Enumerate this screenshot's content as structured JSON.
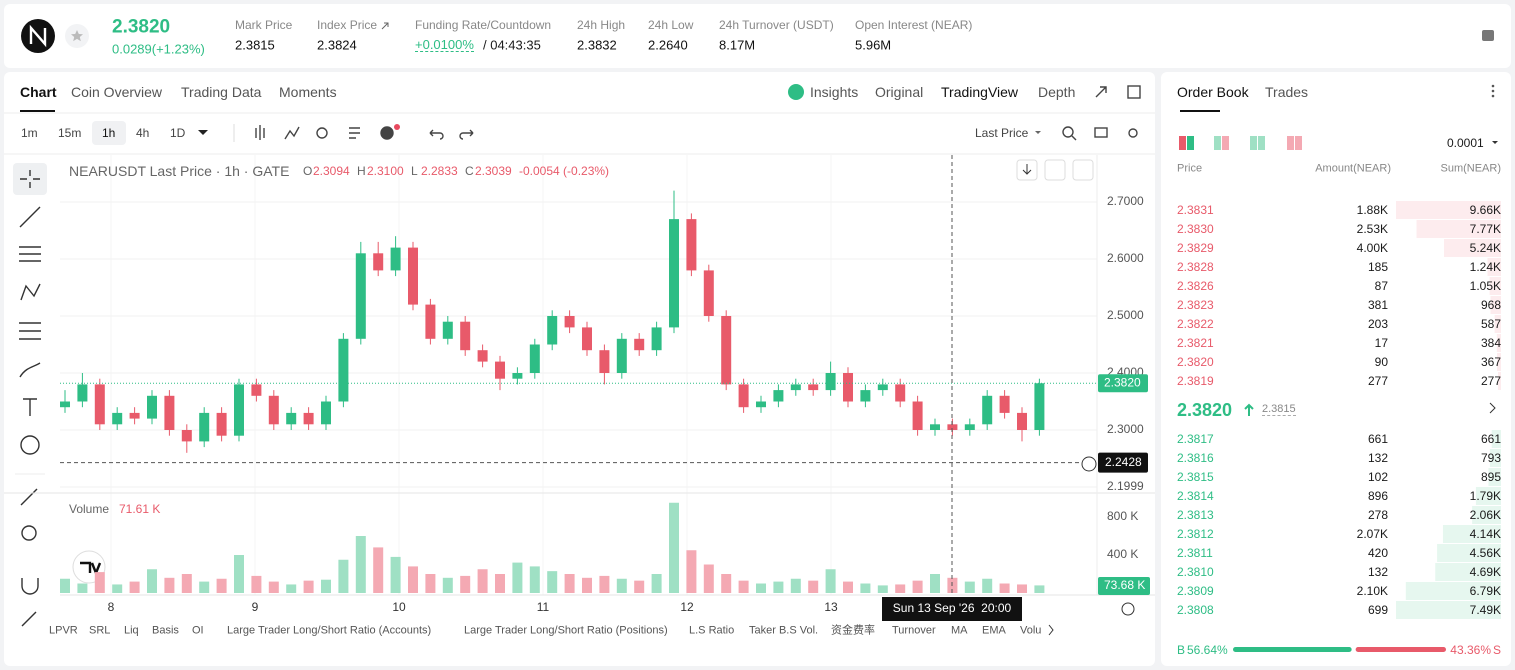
{
  "header": {
    "price": "2.3820",
    "change": "0.0289(+1.23%)",
    "stats": [
      {
        "label": "Mark Price",
        "value": "2.3815"
      },
      {
        "label": "Index Price",
        "value": "2.3824"
      },
      {
        "label": "Funding Rate/Countdown",
        "value": "+0.0100%",
        "extra": "/ 04:43:35"
      },
      {
        "label": "24h High",
        "value": "2.3832"
      },
      {
        "label": "24h Low",
        "value": "2.2640"
      },
      {
        "label": "24h Turnover (USDT)",
        "value": "8.17M"
      },
      {
        "label": "Open Interest (NEAR)",
        "value": "5.96M"
      }
    ]
  },
  "tabs": [
    "Chart",
    "Coin Overview",
    "Trading Data",
    "Moments"
  ],
  "view_tabs": [
    "Insights",
    "Original",
    "TradingView",
    "Depth"
  ],
  "intervals": [
    "1m",
    "15m",
    "1h",
    "4h",
    "1D"
  ],
  "price_type": "Last Price",
  "legend": {
    "symbol": "NEARUSDT Last Price · 1h · GATE",
    "ohlc": [
      {
        "k": "O",
        "v": "2.3094"
      },
      {
        "k": "H",
        "v": "2.3100"
      },
      {
        "k": "L",
        "v": "2.2833"
      },
      {
        "k": "C",
        "v": "2.3039"
      }
    ],
    "change": "-0.0054 (-0.23%)"
  },
  "chart": {
    "candles": {
      "open": [
        2.34,
        2.35,
        2.38,
        2.31,
        2.33,
        2.32,
        2.36,
        2.3,
        2.28,
        2.33,
        2.29,
        2.38,
        2.36,
        2.31,
        2.33,
        2.31,
        2.35,
        2.46,
        2.61,
        2.58,
        2.62,
        2.52,
        2.46,
        2.49,
        2.44,
        2.42,
        2.39,
        2.4,
        2.45,
        2.5,
        2.48,
        2.44,
        2.4,
        2.46,
        2.44,
        2.48,
        2.67,
        2.58,
        2.5,
        2.38,
        2.34,
        2.35,
        2.37,
        2.38,
        2.37,
        2.4,
        2.35,
        2.37,
        2.38,
        2.35,
        2.3,
        2.31,
        2.3,
        2.31,
        2.36,
        2.33,
        2.3
      ],
      "high": [
        2.37,
        2.4,
        2.39,
        2.34,
        2.34,
        2.37,
        2.37,
        2.31,
        2.34,
        2.34,
        2.39,
        2.39,
        2.37,
        2.34,
        2.34,
        2.36,
        2.47,
        2.63,
        2.63,
        2.64,
        2.63,
        2.53,
        2.5,
        2.5,
        2.45,
        2.43,
        2.41,
        2.46,
        2.51,
        2.51,
        2.49,
        2.45,
        2.47,
        2.47,
        2.49,
        2.72,
        2.68,
        2.59,
        2.51,
        2.39,
        2.36,
        2.38,
        2.39,
        2.39,
        2.42,
        2.41,
        2.38,
        2.39,
        2.39,
        2.36,
        2.32,
        2.32,
        2.32,
        2.37,
        2.37,
        2.34,
        2.39
      ],
      "low": [
        2.33,
        2.34,
        2.3,
        2.3,
        2.31,
        2.31,
        2.29,
        2.26,
        2.27,
        2.28,
        2.28,
        2.35,
        2.3,
        2.3,
        2.3,
        2.3,
        2.34,
        2.45,
        2.57,
        2.57,
        2.51,
        2.45,
        2.45,
        2.43,
        2.41,
        2.37,
        2.38,
        2.39,
        2.44,
        2.47,
        2.43,
        2.38,
        2.39,
        2.43,
        2.43,
        2.47,
        2.57,
        2.49,
        2.37,
        2.33,
        2.33,
        2.34,
        2.36,
        2.36,
        2.36,
        2.34,
        2.34,
        2.36,
        2.34,
        2.29,
        2.29,
        2.29,
        2.29,
        2.3,
        2.32,
        2.28,
        2.29
      ],
      "close": [
        2.35,
        2.38,
        2.31,
        2.33,
        2.32,
        2.36,
        2.3,
        2.28,
        2.33,
        2.29,
        2.38,
        2.36,
        2.31,
        2.33,
        2.31,
        2.35,
        2.46,
        2.61,
        2.58,
        2.62,
        2.52,
        2.46,
        2.49,
        2.44,
        2.42,
        2.39,
        2.4,
        2.45,
        2.5,
        2.48,
        2.44,
        2.4,
        2.46,
        2.44,
        2.48,
        2.67,
        2.58,
        2.5,
        2.38,
        2.34,
        2.35,
        2.37,
        2.38,
        2.37,
        2.4,
        2.35,
        2.37,
        2.38,
        2.35,
        2.3,
        2.31,
        2.3,
        2.31,
        2.36,
        2.33,
        2.3,
        2.382
      ]
    },
    "volume": [
      150,
      100,
      220,
      90,
      120,
      250,
      160,
      200,
      120,
      150,
      400,
      180,
      120,
      90,
      130,
      140,
      350,
      600,
      480,
      380,
      280,
      200,
      160,
      180,
      250,
      200,
      320,
      280,
      230,
      200,
      160,
      180,
      150,
      130,
      200,
      950,
      450,
      300,
      200,
      130,
      100,
      120,
      150,
      130,
      250,
      120,
      100,
      80,
      90,
      130,
      200,
      160,
      120,
      150,
      100,
      90,
      80
    ],
    "price_ticks": [
      {
        "value": 2.7,
        "label": "2.7000"
      },
      {
        "value": 2.6,
        "label": "2.6000"
      },
      {
        "value": 2.5,
        "label": "2.5000"
      },
      {
        "value": 2.4,
        "label": "2.4000"
      },
      {
        "value": 2.3,
        "label": "2.3000"
      },
      {
        "value": 2.1999,
        "label": "2.1999"
      }
    ],
    "volume_ticks": [
      {
        "value": 800,
        "label": "800 K"
      },
      {
        "value": 400,
        "label": "400 K"
      }
    ],
    "dates": [
      "8",
      "9",
      "10",
      "11",
      "12",
      "13"
    ],
    "last_price": {
      "value": 2.382,
      "label": "2.3820"
    },
    "crosshair": {
      "value": 2.2428,
      "label": "2.2428",
      "time": "Sun 13 Sep '26  20:00"
    },
    "volume_title": "Volume",
    "volume_value": "71.61 K",
    "volume_tag": {
      "value": 73.68,
      "label": "73.68 K"
    }
  },
  "indicators": [
    "LPVR",
    "SRL",
    "Liq",
    "Basis",
    "OI",
    "Large Trader Long/Short Ratio (Accounts)",
    "Large Trader Long/Short Ratio (Positions)",
    "L.S Ratio",
    "Taker B.S Vol.",
    "资金费率",
    "Turnover",
    "MA",
    "EMA",
    "Volu"
  ],
  "order_book": {
    "tabs": [
      "Order Book",
      "Trades"
    ],
    "precision": "0.0001",
    "columns": [
      "Price",
      "Amount(NEAR)",
      "Sum(NEAR)"
    ],
    "asks": [
      [
        "2.3831",
        "1.88K",
        "9.66K"
      ],
      [
        "2.3830",
        "2.53K",
        "7.77K"
      ],
      [
        "2.3829",
        "4.00K",
        "5.24K"
      ],
      [
        "2.3828",
        "185",
        "1.24K"
      ],
      [
        "2.3826",
        "87",
        "1.05K"
      ],
      [
        "2.3823",
        "381",
        "968"
      ],
      [
        "2.3822",
        "203",
        "587"
      ],
      [
        "2.3821",
        "17",
        "384"
      ],
      [
        "2.3820",
        "90",
        "367"
      ],
      [
        "2.3819",
        "277",
        "277"
      ]
    ],
    "last": "2.3820",
    "mark": "2.3815",
    "bids": [
      [
        "2.3817",
        "661",
        "661"
      ],
      [
        "2.3816",
        "132",
        "793"
      ],
      [
        "2.3815",
        "102",
        "895"
      ],
      [
        "2.3814",
        "896",
        "1.79K"
      ],
      [
        "2.3813",
        "278",
        "2.06K"
      ],
      [
        "2.3812",
        "2.07K",
        "4.14K"
      ],
      [
        "2.3811",
        "420",
        "4.56K"
      ],
      [
        "2.3810",
        "132",
        "4.69K"
      ],
      [
        "2.3809",
        "2.10K",
        "6.79K"
      ],
      [
        "2.3808",
        "699",
        "7.49K"
      ]
    ],
    "buy_label": "B",
    "buy": "56.64%",
    "sell": "43.36%",
    "sell_label": "S"
  }
}
